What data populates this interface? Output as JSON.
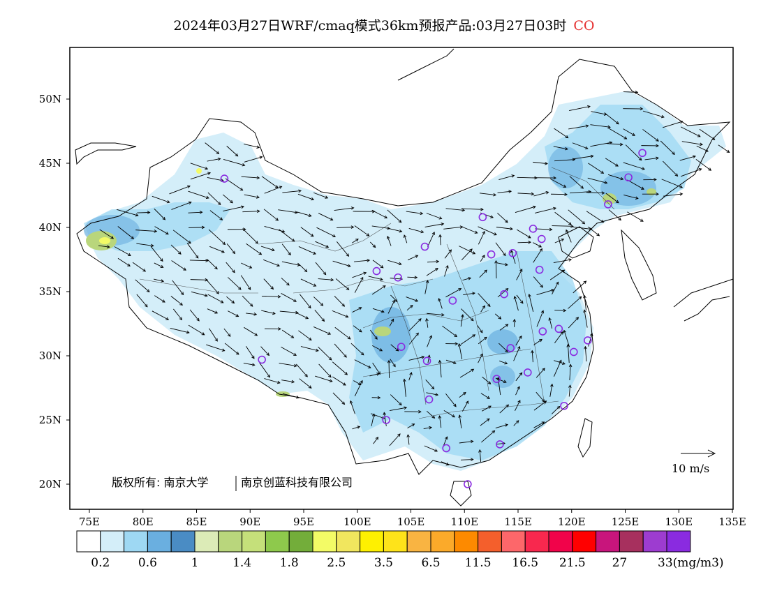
{
  "title": {
    "main": "2024年03月27日WRF/cmaq模式36km预报产品:03月27日03时",
    "species": "CO",
    "species_color": "#e53030"
  },
  "axes": {
    "lat_ticks": [
      "50N",
      "45N",
      "40N",
      "35N",
      "30N",
      "25N",
      "20N"
    ],
    "lon_ticks": [
      "75E",
      "80E",
      "85E",
      "90E",
      "95E",
      "100E",
      "105E",
      "110E",
      "115E",
      "120E",
      "125E",
      "130E",
      "135E"
    ],
    "lon_range": [
      73,
      135
    ],
    "lat_range": [
      18,
      54
    ]
  },
  "reference_vector": {
    "label": "10 m/s"
  },
  "copyright": {
    "part1": "版权所有: 南京大学",
    "part2": "南京创蓝科技有限公司"
  },
  "colorbar": {
    "colors": [
      "#ffffff",
      "#d4eef9",
      "#9ed8f3",
      "#6aafe0",
      "#4a8cc4",
      "#dcebb7",
      "#b9d67c",
      "#c5e07a",
      "#8ec94c",
      "#73ad3a",
      "#f3fb66",
      "#f1e65e",
      "#fef001",
      "#fee31a",
      "#f9b442",
      "#fbaa2a",
      "#fd8a00",
      "#f45f2c",
      "#fd676a",
      "#f8284e",
      "#f1034a",
      "#ff0000",
      "#c8157c",
      "#a7305e",
      "#9d3cd0",
      "#8a2be0"
    ],
    "labels": [
      "0.2",
      "0.6",
      "1",
      "1.4",
      "1.8",
      "2.5",
      "3.5",
      "6.5",
      "11.5",
      "16.5",
      "21.5",
      "27",
      "33(mg/m3)"
    ],
    "unit": "(mg/m3)"
  },
  "stations": [
    {
      "lon": 87.6,
      "lat": 43.8
    },
    {
      "lon": 91.1,
      "lat": 29.7
    },
    {
      "lon": 101.8,
      "lat": 36.6
    },
    {
      "lon": 103.8,
      "lat": 36.1
    },
    {
      "lon": 106.3,
      "lat": 38.5
    },
    {
      "lon": 104.1,
      "lat": 30.7
    },
    {
      "lon": 106.5,
      "lat": 29.6
    },
    {
      "lon": 102.7,
      "lat": 25.0
    },
    {
      "lon": 106.7,
      "lat": 26.6
    },
    {
      "lon": 108.3,
      "lat": 22.8
    },
    {
      "lon": 110.3,
      "lat": 20.0
    },
    {
      "lon": 108.9,
      "lat": 34.3
    },
    {
      "lon": 111.7,
      "lat": 40.8
    },
    {
      "lon": 112.5,
      "lat": 37.9
    },
    {
      "lon": 114.5,
      "lat": 38.0
    },
    {
      "lon": 116.4,
      "lat": 39.9
    },
    {
      "lon": 117.2,
      "lat": 39.1
    },
    {
      "lon": 117.0,
      "lat": 36.7
    },
    {
      "lon": 113.7,
      "lat": 34.8
    },
    {
      "lon": 117.3,
      "lat": 31.9
    },
    {
      "lon": 114.3,
      "lat": 30.6
    },
    {
      "lon": 113.0,
      "lat": 28.2
    },
    {
      "lon": 115.9,
      "lat": 28.7
    },
    {
      "lon": 118.8,
      "lat": 32.1
    },
    {
      "lon": 120.2,
      "lat": 30.3
    },
    {
      "lon": 121.5,
      "lat": 31.2
    },
    {
      "lon": 119.3,
      "lat": 26.1
    },
    {
      "lon": 113.3,
      "lat": 23.1
    },
    {
      "lon": 123.4,
      "lat": 41.8
    },
    {
      "lon": 125.3,
      "lat": 43.9
    },
    {
      "lon": 126.6,
      "lat": 45.8
    }
  ],
  "station_color": "#8a2be0",
  "fill_colors": {
    "land": "#ffffff",
    "light_blue": "#d4eef9",
    "mid_blue": "#9ed8f3",
    "blue": "#6aafe0",
    "green_low": "#dcebb7",
    "green_mid": "#b9d67c",
    "yellow": "#f3fb66"
  }
}
